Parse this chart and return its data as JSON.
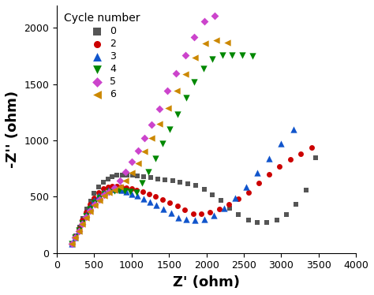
{
  "title": "",
  "xlabel": "Z' (ohm)",
  "ylabel": "-Z'' (ohm)",
  "xlim": [
    0,
    4000
  ],
  "ylim": [
    0,
    2200
  ],
  "xticks": [
    0,
    500,
    1000,
    1500,
    2000,
    2500,
    3000,
    3500,
    4000
  ],
  "yticks": [
    0,
    500,
    1000,
    1500,
    2000
  ],
  "legend_title": "Cycle number",
  "series": [
    {
      "label": "0",
      "color": "#555555",
      "marker": "s",
      "markersize": 5,
      "x": [
        200,
        250,
        300,
        350,
        400,
        450,
        500,
        560,
        620,
        680,
        740,
        800,
        870,
        940,
        1010,
        1080,
        1160,
        1250,
        1350,
        1450,
        1550,
        1650,
        1750,
        1860,
        1970,
        2080,
        2190,
        2310,
        2430,
        2560,
        2680,
        2810,
        2940,
        3070,
        3200,
        3330,
        3460
      ],
      "y": [
        80,
        150,
        230,
        310,
        390,
        460,
        530,
        590,
        630,
        660,
        680,
        690,
        695,
        695,
        690,
        685,
        678,
        670,
        660,
        650,
        640,
        630,
        615,
        600,
        565,
        520,
        470,
        400,
        340,
        295,
        270,
        270,
        290,
        340,
        430,
        560,
        850
      ]
    },
    {
      "label": "2",
      "color": "#cc0000",
      "marker": "o",
      "markersize": 5,
      "x": [
        200,
        245,
        290,
        340,
        390,
        445,
        500,
        560,
        620,
        680,
        740,
        800,
        860,
        930,
        1000,
        1070,
        1150,
        1230,
        1320,
        1410,
        1510,
        1610,
        1710,
        1820,
        1930,
        2050,
        2170,
        2300,
        2430,
        2560,
        2700,
        2840,
        2980,
        3120,
        3260,
        3410
      ],
      "y": [
        80,
        145,
        215,
        290,
        365,
        430,
        490,
        540,
        570,
        585,
        592,
        594,
        590,
        582,
        572,
        558,
        542,
        523,
        500,
        476,
        448,
        418,
        385,
        350,
        350,
        365,
        390,
        430,
        480,
        540,
        620,
        700,
        770,
        830,
        880,
        940
      ]
    },
    {
      "label": "3",
      "color": "#1155cc",
      "marker": "^",
      "markersize": 6,
      "x": [
        200,
        245,
        290,
        340,
        390,
        445,
        500,
        560,
        620,
        680,
        740,
        800,
        860,
        930,
        1000,
        1075,
        1155,
        1240,
        1330,
        1425,
        1525,
        1625,
        1735,
        1850,
        1970,
        2100,
        2240,
        2380,
        2530,
        2680,
        2840,
        3000,
        3160
      ],
      "y": [
        80,
        142,
        205,
        275,
        345,
        410,
        465,
        510,
        540,
        558,
        565,
        565,
        558,
        545,
        527,
        507,
        484,
        457,
        427,
        393,
        355,
        314,
        300,
        295,
        300,
        338,
        400,
        490,
        590,
        710,
        840,
        970,
        1100
      ]
    },
    {
      "label": "4",
      "color": "#008800",
      "marker": "v",
      "markersize": 6,
      "x": [
        200,
        245,
        290,
        340,
        390,
        445,
        505,
        570,
        635,
        700,
        765,
        835,
        910,
        985,
        1060,
        1140,
        1225,
        1315,
        1410,
        1510,
        1615,
        1725,
        1840,
        1960,
        2080,
        2210,
        2340,
        2480,
        2620
      ],
      "y": [
        80,
        140,
        200,
        265,
        330,
        390,
        445,
        492,
        525,
        545,
        555,
        558,
        555,
        548,
        536,
        620,
        720,
        840,
        970,
        1100,
        1230,
        1380,
        1520,
        1640,
        1720,
        1760,
        1760,
        1760,
        1750
      ]
    },
    {
      "label": "5",
      "color": "#cc44cc",
      "marker": "D",
      "markersize": 5,
      "x": [
        200,
        245,
        290,
        340,
        390,
        445,
        505,
        570,
        635,
        700,
        770,
        845,
        920,
        1000,
        1085,
        1175,
        1270,
        1375,
        1480,
        1595,
        1715,
        1840,
        1975,
        2110
      ],
      "y": [
        80,
        138,
        195,
        258,
        320,
        378,
        430,
        478,
        516,
        548,
        580,
        640,
        720,
        810,
        910,
        1020,
        1140,
        1280,
        1440,
        1600,
        1760,
        1920,
        2060,
        2110
      ]
    },
    {
      "label": "6",
      "color": "#cc8800",
      "marker": "<",
      "markersize": 6,
      "x": [
        200,
        245,
        290,
        340,
        390,
        445,
        505,
        570,
        635,
        700,
        770,
        845,
        920,
        1000,
        1085,
        1175,
        1270,
        1375,
        1485,
        1600,
        1720,
        1850,
        1985,
        2130,
        2280
      ],
      "y": [
        80,
        138,
        194,
        255,
        315,
        372,
        425,
        470,
        508,
        538,
        562,
        590,
        640,
        710,
        800,
        905,
        1020,
        1150,
        1290,
        1440,
        1590,
        1740,
        1860,
        1890,
        1870
      ]
    }
  ]
}
